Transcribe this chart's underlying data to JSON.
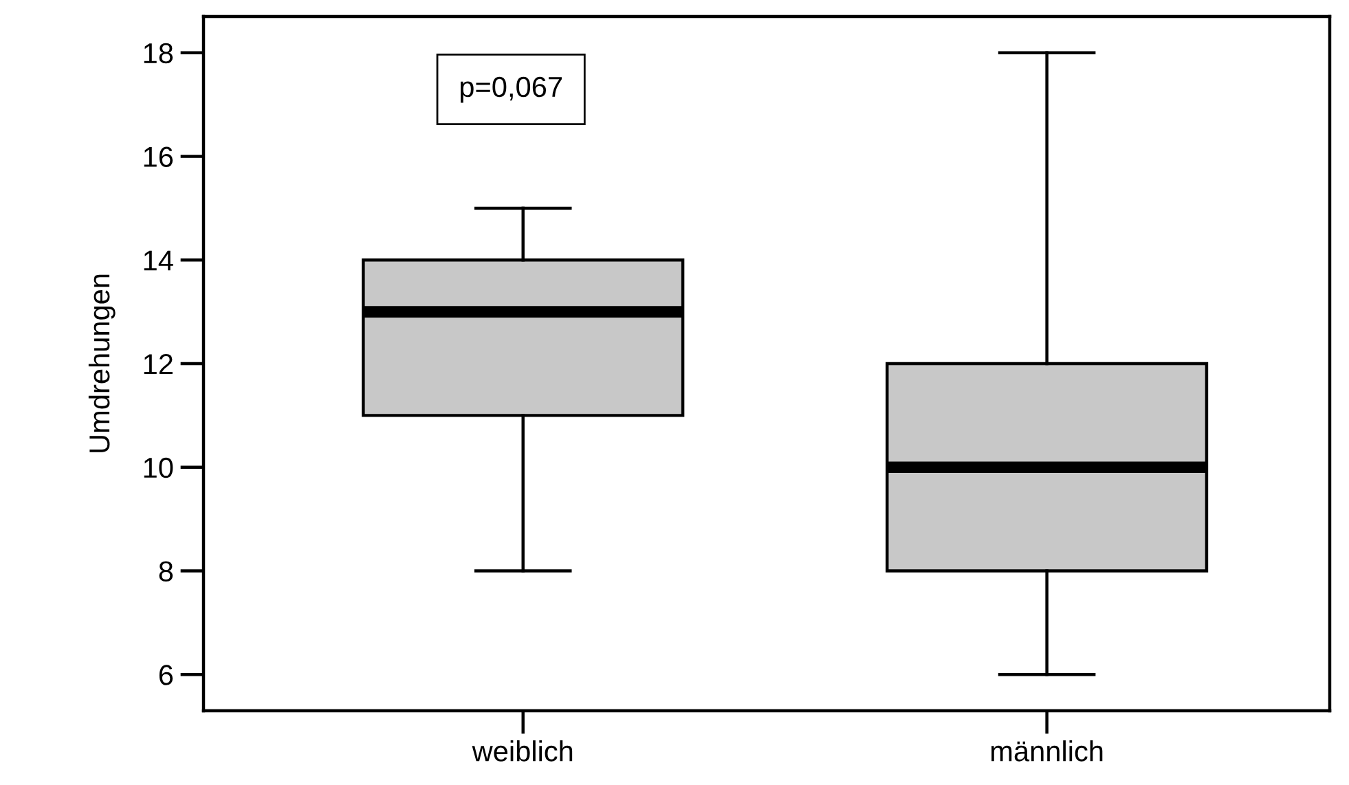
{
  "chart_data": {
    "type": "box",
    "categories": [
      "weiblich",
      "männlich"
    ],
    "ylabel": "Umdrehungen",
    "color": "#c8c8c8",
    "boxes": [
      {
        "low": 8,
        "q1": 11,
        "median": 13,
        "q3": 14,
        "high": 15
      },
      {
        "low": 6,
        "q1": 8,
        "median": 10,
        "q3": 12,
        "high": 18
      }
    ],
    "ylim": [
      5.3,
      18.7
    ],
    "yticks": [
      6,
      8,
      10,
      12,
      14,
      16,
      18
    ],
    "grid": false,
    "legend": false,
    "annotations": [
      "p=0,067"
    ]
  }
}
